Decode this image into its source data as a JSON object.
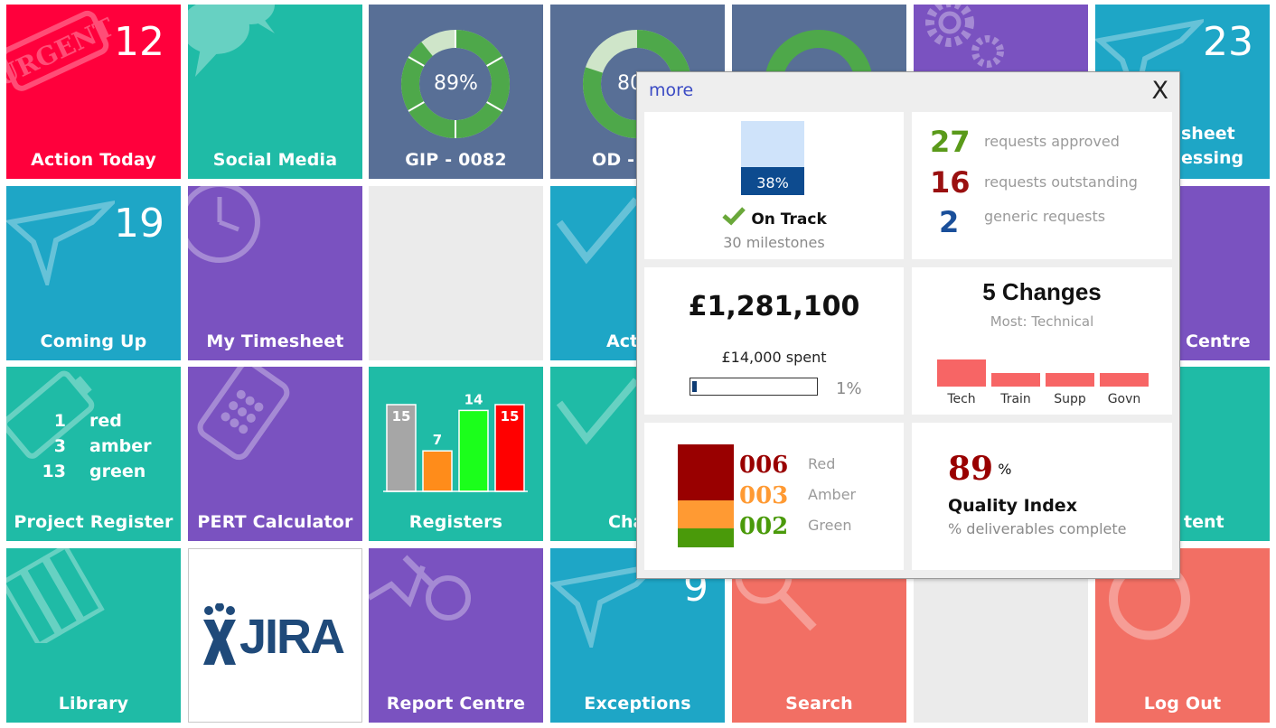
{
  "tiles": {
    "action_today": {
      "label": "Action Today",
      "count": "12",
      "stamp": "URGENT"
    },
    "social_media": {
      "label": "Social Media"
    },
    "gip": {
      "label": "GIP - 0082",
      "percent": "89%",
      "fraction": 0.89
    },
    "od": {
      "label": "OD -",
      "percent": "80"
    },
    "timesheet_processing": {
      "label": "sheet\nessing",
      "count": "23"
    },
    "coming_up": {
      "label": "Coming Up",
      "count": "19"
    },
    "my_timesheet": {
      "label": "My Timesheet"
    },
    "actions": {
      "label": "Acti"
    },
    "centre": {
      "label": "Centre"
    },
    "project_register": {
      "label": "Project Register",
      "rows": [
        {
          "n": "1",
          "name": "red"
        },
        {
          "n": "3",
          "name": "amber"
        },
        {
          "n": "13",
          "name": "green"
        }
      ]
    },
    "pert_calculator": {
      "label": "PERT Calculator"
    },
    "registers": {
      "label": "Registers",
      "bars": [
        {
          "value": 15,
          "color": "#a6a6a6",
          "text": "15"
        },
        {
          "value": 7,
          "color": "#ff8c1a",
          "text": "7"
        },
        {
          "value": 14,
          "color": "#1bff1b",
          "text": "14"
        },
        {
          "value": 15,
          "color": "#ff0000",
          "text": "15"
        }
      ]
    },
    "change": {
      "label": "Cha"
    },
    "content": {
      "label": "tent"
    },
    "library": {
      "label": "Library"
    },
    "jira": {
      "label": "JIRA"
    },
    "report_centre": {
      "label": "Report Centre"
    },
    "exceptions": {
      "label": "Exceptions",
      "count": "9"
    },
    "search": {
      "label": "Search"
    },
    "log_out": {
      "label": "Log Out"
    }
  },
  "popup": {
    "more_link": "more",
    "close_label": "X",
    "milestones": {
      "percent_text": "38%",
      "fraction": 0.38,
      "status": "On Track",
      "sub": "30 milestones"
    },
    "requests": [
      {
        "count": "27",
        "text": "requests approved",
        "color": "#5a9a1a"
      },
      {
        "count": "16",
        "text": "requests outstanding",
        "color": "#9a1010"
      },
      {
        "count": "2",
        "text": "generic requests",
        "color": "#1a4f9a"
      }
    ],
    "budget": {
      "total": "£1,281,100",
      "spent": "£14,000 spent",
      "percent_text": "1%",
      "fraction": 0.01
    },
    "changes": {
      "title": "5 Changes",
      "subtitle": "Most: Technical",
      "categories": [
        "Tech",
        "Train",
        "Supp",
        "Govn"
      ],
      "values": [
        2,
        1,
        1,
        1
      ]
    },
    "rag": [
      {
        "code": "006",
        "label": "Red",
        "color": "#990000",
        "value": 6
      },
      {
        "code": "003",
        "label": "Amber",
        "color": "#ff9a33",
        "value": 3
      },
      {
        "code": "002",
        "label": "Green",
        "color": "#4a9a0a",
        "value": 2
      }
    ],
    "quality": {
      "value": "89",
      "unit": "%",
      "title": "Quality Index",
      "sub": "% deliverables complete"
    }
  },
  "colors": {
    "red": "#ff003c",
    "teal": "#1fbba6",
    "slate": "#586f96",
    "purple": "#7a52c0",
    "blue": "#1ea6c6",
    "grey": "#ebebeb",
    "salmon": "#f26f64"
  }
}
